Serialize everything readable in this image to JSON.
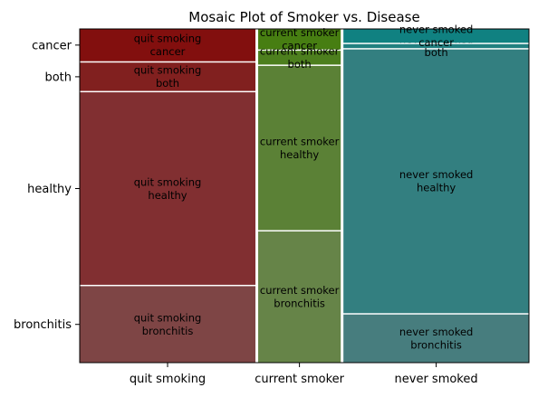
{
  "chart_data": {
    "type": "mosaic",
    "title": "Mosaic Plot of Smoker vs. Disease",
    "xlabel": "",
    "ylabel": "",
    "categories": [
      "quit smoking",
      "current smoker",
      "never smoked"
    ],
    "column_widths": [
      0.396,
      0.186,
      0.418
    ],
    "diseases": [
      "bronchitis",
      "healthy",
      "both",
      "cancer"
    ],
    "y_tick_labels": [
      "bronchitis",
      "healthy",
      "both",
      "cancer"
    ],
    "cells": [
      {
        "smoker": "quit smoking",
        "disease": "bronchitis",
        "label": "quit smoking\nbronchitis",
        "fraction": 0.232
      },
      {
        "smoker": "quit smoking",
        "disease": "healthy",
        "label": "quit smoking\nhealthy",
        "fraction": 0.584
      },
      {
        "smoker": "quit smoking",
        "disease": "both",
        "label": "quit smoking\nboth",
        "fraction": 0.086
      },
      {
        "smoker": "quit smoking",
        "disease": "cancer",
        "label": "quit smoking\ncancer",
        "fraction": 0.098
      },
      {
        "smoker": "current smoker",
        "disease": "bronchitis",
        "label": "current smoker\nbronchitis",
        "fraction": 0.398
      },
      {
        "smoker": "current smoker",
        "disease": "healthy",
        "label": "current smoker\nhealthy",
        "fraction": 0.498
      },
      {
        "smoker": "current smoker",
        "disease": "both",
        "label": "current smoker\nboth",
        "fraction": 0.042
      },
      {
        "smoker": "current smoker",
        "disease": "cancer",
        "label": "current smoker\ncancer",
        "fraction": 0.062
      },
      {
        "smoker": "never smoked",
        "disease": "bronchitis",
        "label": "never smoked\nbronchitis",
        "fraction": 0.146
      },
      {
        "smoker": "never smoked",
        "disease": "healthy",
        "label": "never smoked\nhealthy",
        "fraction": 0.8
      },
      {
        "smoker": "never smoked",
        "disease": "both",
        "label": "never smoked\nboth",
        "fraction": 0.012
      },
      {
        "smoker": "never smoked",
        "disease": "cancer",
        "label": "never smoked\ncancer",
        "fraction": 0.042
      }
    ],
    "column_colors": {
      "quit smoking": "#801c1c",
      "current smoker": "#5a8030",
      "never smoked": "#2e8080"
    },
    "cell_colors": {
      "quit smoking": [
        "#7e4545",
        "#812f31",
        "#81201f",
        "#820f0e"
      ],
      "current smoker": [
        "#668448",
        "#5b8136",
        "#4d7f1e",
        "#477e12"
      ],
      "never smoked": [
        "#477d7e",
        "#337f80",
        "#218080",
        "#108181"
      ]
    },
    "grid": false,
    "legend": "none"
  }
}
